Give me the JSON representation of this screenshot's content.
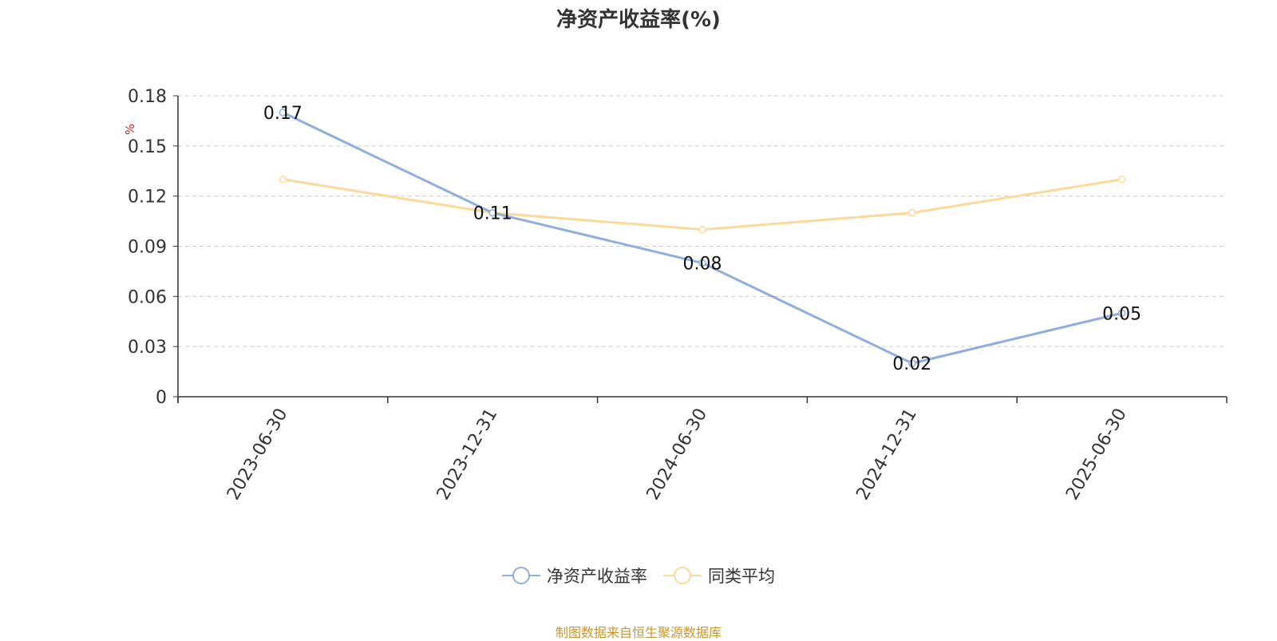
{
  "title": "净资产收益率(%)",
  "source": "制图数据来自恒生聚源数据库",
  "colors": {
    "series1": "#8eaedb",
    "series2": "#fbd99a",
    "unit": "#e02020",
    "source": "#c9962b"
  },
  "chart_data": {
    "type": "line",
    "title": "净资产收益率(%)",
    "ylabel": "%",
    "x": [
      "2023-06-30",
      "2023-12-31",
      "2024-06-30",
      "2024-12-31",
      "2025-06-30"
    ],
    "ylim": [
      0,
      0.18
    ],
    "yticks": [
      "0",
      "0.03",
      "0.06",
      "0.09",
      "0.12",
      "0.15",
      "0.18"
    ],
    "grid": true,
    "legend_position": "bottom",
    "series": [
      {
        "name": "净资产收益率",
        "values": [
          0.17,
          0.11,
          0.08,
          0.02,
          0.05
        ],
        "labels": [
          "0.17",
          "0.11",
          "0.08",
          "0.02",
          "0.05"
        ]
      },
      {
        "name": "同类平均",
        "values": [
          0.13,
          0.11,
          0.1,
          0.11,
          0.13
        ]
      }
    ]
  }
}
